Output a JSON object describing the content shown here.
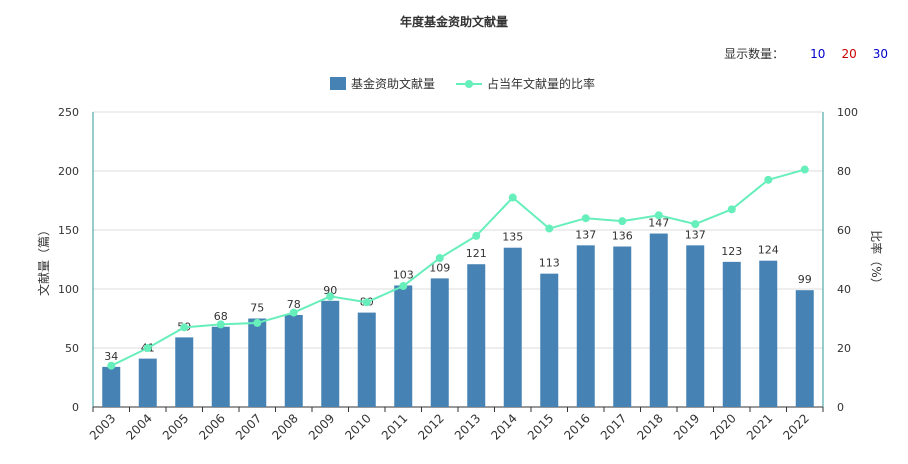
{
  "title": "年度基金资助文献量",
  "display_count": {
    "label": "显示数量：",
    "options": [
      {
        "label": "10",
        "color": "#0000cc"
      },
      {
        "label": "20",
        "color": "#cc0000"
      },
      {
        "label": "30",
        "color": "#0000cc"
      }
    ]
  },
  "colors": {
    "bar": "#4682b4",
    "line": "#66eebb",
    "axis": "#2e9999",
    "grid": "#dddddd"
  },
  "chart_data": {
    "type": "bar",
    "categories": [
      "2003",
      "2004",
      "2005",
      "2006",
      "2007",
      "2008",
      "2009",
      "2010",
      "2011",
      "2012",
      "2013",
      "2014",
      "2015",
      "2016",
      "2017",
      "2018",
      "2019",
      "2020",
      "2021",
      "2022"
    ],
    "series": [
      {
        "name": "基金资助文献量",
        "type": "bar",
        "values": [
          34,
          41,
          59,
          68,
          75,
          78,
          90,
          80,
          103,
          109,
          121,
          135,
          113,
          137,
          136,
          147,
          137,
          123,
          124,
          99
        ]
      },
      {
        "name": "占当年文献量的比率",
        "type": "line",
        "values": [
          14,
          20,
          27,
          28,
          28.5,
          32,
          37.5,
          35.5,
          41,
          50.5,
          58,
          71,
          60.5,
          64,
          63,
          65,
          62,
          67,
          77,
          80.5
        ]
      }
    ],
    "ylabel": "文献量（篇）",
    "y2label": "比率（%）",
    "ylim": [
      0,
      250
    ],
    "yticks": [
      0,
      50,
      100,
      150,
      200,
      250
    ],
    "y2lim": [
      0,
      100
    ],
    "y2ticks": [
      0,
      20,
      40,
      60,
      80,
      100
    ],
    "legend": "top-center",
    "grid": true
  }
}
